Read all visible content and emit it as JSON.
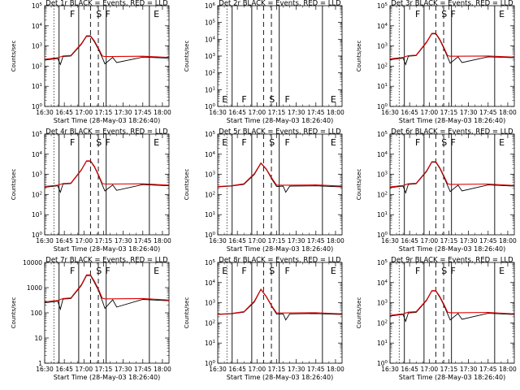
{
  "figure": {
    "x_tick_labels": [
      "16:30",
      "16:45",
      "17:00",
      "17:15",
      "17:30",
      "17:45",
      "18:00"
    ],
    "x_axis_label": "Start Time (28-May-03 18:26:40)",
    "y_axis_label": "Counts/sec",
    "colors": {
      "events": "#000000",
      "lld": "#e00000"
    }
  },
  "chart_data": [
    {
      "type": "line",
      "title": "Det 1r BLACK = Events, RED = LLD",
      "xlabel": "Start Time (28-May-03 18:26:40)",
      "ylabel": "Counts/sec",
      "ylog": true,
      "xlim": [
        "16:30",
        "18:05"
      ],
      "ylim": [
        1,
        100000
      ],
      "ytick_labels": [
        "10^0",
        "10^1",
        "10^2",
        "10^3",
        "10^4",
        "10^5"
      ],
      "empty": false,
      "markers": [
        "F",
        "S",
        "F",
        "E"
      ],
      "series": [
        {
          "name": "Events",
          "x": [
            "16:30",
            "16:40",
            "16:42",
            "16:44",
            "16:50",
            "16:58",
            "17:02",
            "17:05",
            "17:08",
            "17:11",
            "17:14",
            "17:16",
            "17:22",
            "17:25",
            "17:45",
            "18:05"
          ],
          "values": [
            200,
            240,
            120,
            300,
            320,
            1200,
            3000,
            3000,
            1600,
            700,
            260,
            130,
            270,
            150,
            280,
            250
          ]
        },
        {
          "name": "LLD",
          "x": [
            "16:30",
            "16:40",
            "16:44",
            "16:50",
            "16:58",
            "17:02",
            "17:05",
            "17:08",
            "17:11",
            "17:14",
            "17:16",
            "17:22",
            "17:45",
            "18:05"
          ],
          "values": [
            220,
            260,
            320,
            340,
            1300,
            3200,
            3200,
            1800,
            800,
            320,
            300,
            300,
            310,
            270
          ]
        }
      ]
    },
    {
      "type": "line",
      "title": "Det 2r BLACK = Events, RED = LLD",
      "xlabel": "Start Time (28-May-03 18:26:40)",
      "ylabel": "Counts/sec",
      "ylog": true,
      "xlim": [
        "16:30",
        "18:05"
      ],
      "ylim": [
        1,
        1000000
      ],
      "ytick_labels": [
        "10^0",
        "10^1",
        "10^2",
        "10^3",
        "10^4",
        "10^5",
        "10^6"
      ],
      "empty": true,
      "markers": [
        "E",
        "F",
        "S",
        "F",
        "E"
      ],
      "series": []
    },
    {
      "type": "line",
      "title": "Det 3r BLACK = Events, RED = LLD",
      "xlabel": "Start Time (28-May-03 18:26:40)",
      "ylabel": "Counts/sec",
      "ylog": true,
      "xlim": [
        "16:30",
        "18:05"
      ],
      "ylim": [
        1,
        100000
      ],
      "ytick_labels": [
        "10^0",
        "10^1",
        "10^2",
        "10^3",
        "10^4",
        "10^5"
      ],
      "empty": false,
      "markers": [
        "F",
        "S",
        "F",
        "E"
      ],
      "series": [
        {
          "name": "Events",
          "x": [
            "16:30",
            "16:40",
            "16:42",
            "16:44",
            "16:50",
            "16:58",
            "17:02",
            "17:05",
            "17:08",
            "17:11",
            "17:14",
            "17:16",
            "17:22",
            "17:25",
            "17:45",
            "18:05"
          ],
          "values": [
            210,
            250,
            120,
            310,
            330,
            1500,
            4000,
            4000,
            2000,
            800,
            280,
            140,
            290,
            150,
            290,
            260
          ]
        },
        {
          "name": "LLD",
          "x": [
            "16:30",
            "16:40",
            "16:44",
            "16:50",
            "16:58",
            "17:02",
            "17:05",
            "17:08",
            "17:11",
            "17:14",
            "17:16",
            "17:22",
            "17:45",
            "18:05"
          ],
          "values": [
            230,
            270,
            330,
            350,
            1600,
            4200,
            4200,
            2200,
            900,
            330,
            310,
            310,
            320,
            280
          ]
        }
      ]
    },
    {
      "type": "line",
      "title": "Det 4r BLACK = Events, RED = LLD",
      "xlabel": "Start Time (28-May-03 18:26:40)",
      "ylabel": "Counts/sec",
      "ylog": true,
      "xlim": [
        "16:30",
        "18:05"
      ],
      "ylim": [
        1,
        100000
      ],
      "ytick_labels": [
        "10^0",
        "10^1",
        "10^2",
        "10^3",
        "10^4",
        "10^5"
      ],
      "empty": false,
      "markers": [
        "F",
        "S",
        "F",
        "E"
      ],
      "series": [
        {
          "name": "Events",
          "x": [
            "16:30",
            "16:40",
            "16:42",
            "16:44",
            "16:50",
            "16:58",
            "17:02",
            "17:05",
            "17:08",
            "17:11",
            "17:14",
            "17:16",
            "17:22",
            "17:25",
            "17:45",
            "18:05"
          ],
          "values": [
            230,
            270,
            130,
            330,
            350,
            1600,
            4500,
            4500,
            2300,
            900,
            300,
            150,
            300,
            160,
            310,
            270
          ]
        },
        {
          "name": "LLD",
          "x": [
            "16:30",
            "16:40",
            "16:44",
            "16:50",
            "16:58",
            "17:02",
            "17:05",
            "17:08",
            "17:11",
            "17:14",
            "17:16",
            "17:22",
            "17:45",
            "18:05"
          ],
          "values": [
            250,
            290,
            350,
            370,
            1700,
            4700,
            4700,
            2500,
            1000,
            350,
            330,
            330,
            340,
            290
          ]
        }
      ]
    },
    {
      "type": "line",
      "title": "Det 5r BLACK = Events, RED = LLD",
      "xlabel": "Start Time (28-May-03 18:26:40)",
      "ylabel": "Counts/sec",
      "ylog": true,
      "xlim": [
        "16:30",
        "18:05"
      ],
      "ylim": [
        1,
        100000
      ],
      "ytick_labels": [
        "10^0",
        "10^1",
        "10^2",
        "10^3",
        "10^4",
        "10^5"
      ],
      "empty": false,
      "markers": [
        "E",
        "F",
        "S",
        "F",
        "E"
      ],
      "series": [
        {
          "name": "Events",
          "x": [
            "16:30",
            "16:40",
            "16:50",
            "16:58",
            "17:03",
            "17:07",
            "17:12",
            "17:15",
            "17:20",
            "17:22",
            "17:25",
            "17:45",
            "18:05"
          ],
          "values": [
            240,
            260,
            320,
            1000,
            3500,
            1800,
            500,
            250,
            260,
            130,
            260,
            270,
            240
          ]
        },
        {
          "name": "LLD",
          "x": [
            "16:30",
            "16:40",
            "16:50",
            "16:58",
            "17:03",
            "17:07",
            "17:12",
            "17:15",
            "17:22",
            "17:45",
            "18:05"
          ],
          "values": [
            250,
            270,
            340,
            1100,
            3700,
            1900,
            560,
            290,
            290,
            300,
            260
          ]
        }
      ]
    },
    {
      "type": "line",
      "title": "Det 6r BLACK = Events, RED = LLD",
      "xlabel": "Start Time (28-May-03 18:26:40)",
      "ylabel": "Counts/sec",
      "ylog": true,
      "xlim": [
        "16:30",
        "18:05"
      ],
      "ylim": [
        1,
        100000
      ],
      "ytick_labels": [
        "10^0",
        "10^1",
        "10^2",
        "10^3",
        "10^4",
        "10^5"
      ],
      "empty": false,
      "markers": [
        "F",
        "S",
        "F",
        "E"
      ],
      "series": [
        {
          "name": "Events",
          "x": [
            "16:30",
            "16:40",
            "16:42",
            "16:44",
            "16:50",
            "16:58",
            "17:02",
            "17:05",
            "17:08",
            "17:11",
            "17:14",
            "17:16",
            "17:22",
            "17:25",
            "17:45",
            "18:05"
          ],
          "values": [
            220,
            260,
            120,
            320,
            340,
            1400,
            4000,
            4000,
            2000,
            800,
            280,
            140,
            290,
            150,
            300,
            260
          ]
        },
        {
          "name": "LLD",
          "x": [
            "16:30",
            "16:40",
            "16:44",
            "16:50",
            "16:58",
            "17:02",
            "17:05",
            "17:08",
            "17:11",
            "17:14",
            "17:16",
            "17:22",
            "17:45",
            "18:05"
          ],
          "values": [
            240,
            280,
            340,
            360,
            1500,
            4200,
            4200,
            2200,
            900,
            340,
            320,
            320,
            330,
            280
          ]
        }
      ]
    },
    {
      "type": "line",
      "title": "Det 7r BLACK = Events, RED = LLD",
      "xlabel": "Start Time (28-May-03 18:26:40)",
      "ylabel": "Counts/sec",
      "ylog": true,
      "xlim": [
        "16:30",
        "18:05"
      ],
      "ylim": [
        1,
        10000
      ],
      "ytick_labels": [
        "1",
        "10",
        "100",
        "1000",
        "10000"
      ],
      "empty": false,
      "markers": [
        "F",
        "S",
        "F",
        "E"
      ],
      "series": [
        {
          "name": "Events",
          "x": [
            "16:30",
            "16:40",
            "16:42",
            "16:44",
            "16:50",
            "16:58",
            "17:02",
            "17:05",
            "17:08",
            "17:11",
            "17:14",
            "17:16",
            "17:22",
            "17:25",
            "17:45",
            "18:05"
          ],
          "values": [
            250,
            290,
            140,
            350,
            370,
            1200,
            3000,
            3000,
            1600,
            800,
            300,
            150,
            330,
            170,
            340,
            300
          ]
        },
        {
          "name": "LLD",
          "x": [
            "16:30",
            "16:40",
            "16:44",
            "16:50",
            "16:58",
            "17:02",
            "17:05",
            "17:08",
            "17:11",
            "17:14",
            "17:16",
            "17:22",
            "17:45",
            "18:05"
          ],
          "values": [
            270,
            310,
            370,
            390,
            1300,
            3200,
            3200,
            1800,
            900,
            380,
            360,
            360,
            370,
            320
          ]
        }
      ]
    },
    {
      "type": "line",
      "title": "Det 8r BLACK = Events, RED = LLD",
      "xlabel": "Start Time (28-May-03 18:26:40)",
      "ylabel": "Counts/sec",
      "ylog": true,
      "xlim": [
        "16:30",
        "18:05"
      ],
      "ylim": [
        1,
        100000
      ],
      "ytick_labels": [
        "10^0",
        "10^1",
        "10^2",
        "10^3",
        "10^4",
        "10^5"
      ],
      "empty": false,
      "markers": [
        "E",
        "F",
        "S",
        "F",
        "E"
      ],
      "series": [
        {
          "name": "Events",
          "x": [
            "16:30",
            "16:40",
            "16:50",
            "16:58",
            "17:03",
            "17:07",
            "17:12",
            "17:15",
            "17:20",
            "17:22",
            "17:25",
            "17:45",
            "18:05"
          ],
          "values": [
            260,
            280,
            340,
            1100,
            4500,
            2000,
            550,
            270,
            280,
            140,
            280,
            290,
            260
          ]
        },
        {
          "name": "LLD",
          "x": [
            "16:30",
            "16:40",
            "16:50",
            "16:58",
            "17:03",
            "17:07",
            "17:12",
            "17:15",
            "17:22",
            "17:45",
            "18:05"
          ],
          "values": [
            270,
            290,
            360,
            1200,
            4700,
            2100,
            600,
            310,
            310,
            320,
            280
          ]
        }
      ]
    },
    {
      "type": "line",
      "title": "Det 9r BLACK = Events, RED = LLD",
      "xlabel": "Start Time (28-May-03 18:26:40)",
      "ylabel": "Counts/sec",
      "ylog": true,
      "xlim": [
        "16:30",
        "18:05"
      ],
      "ylim": [
        1,
        100000
      ],
      "ytick_labels": [
        "10^0",
        "10^1",
        "10^2",
        "10^3",
        "10^4",
        "10^5"
      ],
      "empty": false,
      "markers": [
        "F",
        "S",
        "F",
        "E"
      ],
      "series": [
        {
          "name": "Events",
          "x": [
            "16:30",
            "16:40",
            "16:42",
            "16:44",
            "16:50",
            "16:58",
            "17:02",
            "17:05",
            "17:08",
            "17:11",
            "17:14",
            "17:16",
            "17:22",
            "17:25",
            "17:45",
            "18:05"
          ],
          "values": [
            220,
            260,
            120,
            310,
            330,
            1300,
            3800,
            3800,
            1900,
            800,
            280,
            140,
            290,
            150,
            300,
            260
          ]
        },
        {
          "name": "LLD",
          "x": [
            "16:30",
            "16:40",
            "16:44",
            "16:50",
            "16:58",
            "17:02",
            "17:05",
            "17:08",
            "17:11",
            "17:14",
            "17:16",
            "17:22",
            "17:45",
            "18:05"
          ],
          "values": [
            240,
            280,
            340,
            360,
            1400,
            4000,
            4000,
            2100,
            900,
            340,
            320,
            320,
            330,
            280
          ]
        }
      ]
    }
  ]
}
